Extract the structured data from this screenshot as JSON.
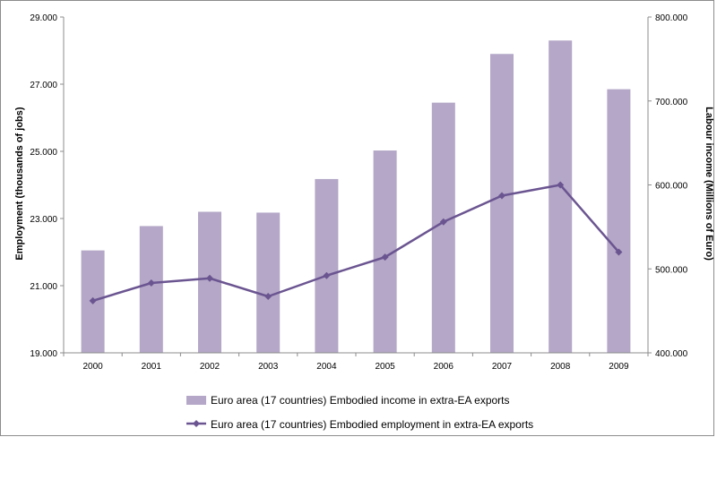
{
  "chart_data": {
    "type": "bar+line",
    "title": "",
    "categories": [
      "2000",
      "2001",
      "2002",
      "2003",
      "2004",
      "2005",
      "2006",
      "2007",
      "2008",
      "2009"
    ],
    "series": [
      {
        "name": "Euro area (17 countries) Embodied income in extra-EA exports",
        "kind": "bar",
        "axis": "right",
        "color": "#b4a7c7",
        "values": [
          522,
          551,
          568,
          567,
          607,
          641,
          698,
          756,
          772,
          714
        ]
      },
      {
        "name": "Euro area (17 countries) Embodied employment in extra-EA exports",
        "kind": "line",
        "axis": "left",
        "color": "#6b5591",
        "values": [
          20.55,
          21.08,
          21.22,
          20.68,
          21.3,
          21.85,
          22.9,
          23.68,
          24.0,
          22.0
        ]
      }
    ],
    "ylabel_left": "Employment (thousands of jobs)",
    "ylabel_right": "Labour income (Millions of Euro)",
    "ylim_left": [
      19,
      29
    ],
    "ylim_right": [
      400,
      800
    ],
    "yticks_left": [
      "19.000",
      "21.000",
      "23.000",
      "25.000",
      "27.000",
      "29.000"
    ],
    "yticks_right": [
      "400.000",
      "500.000",
      "600.000",
      "700.000",
      "800.000"
    ],
    "yticks_left_values": [
      19,
      21,
      23,
      25,
      27,
      29
    ],
    "yticks_right_values": [
      400,
      500,
      600,
      700,
      800
    ],
    "grid": false,
    "legend_position": "bottom"
  }
}
